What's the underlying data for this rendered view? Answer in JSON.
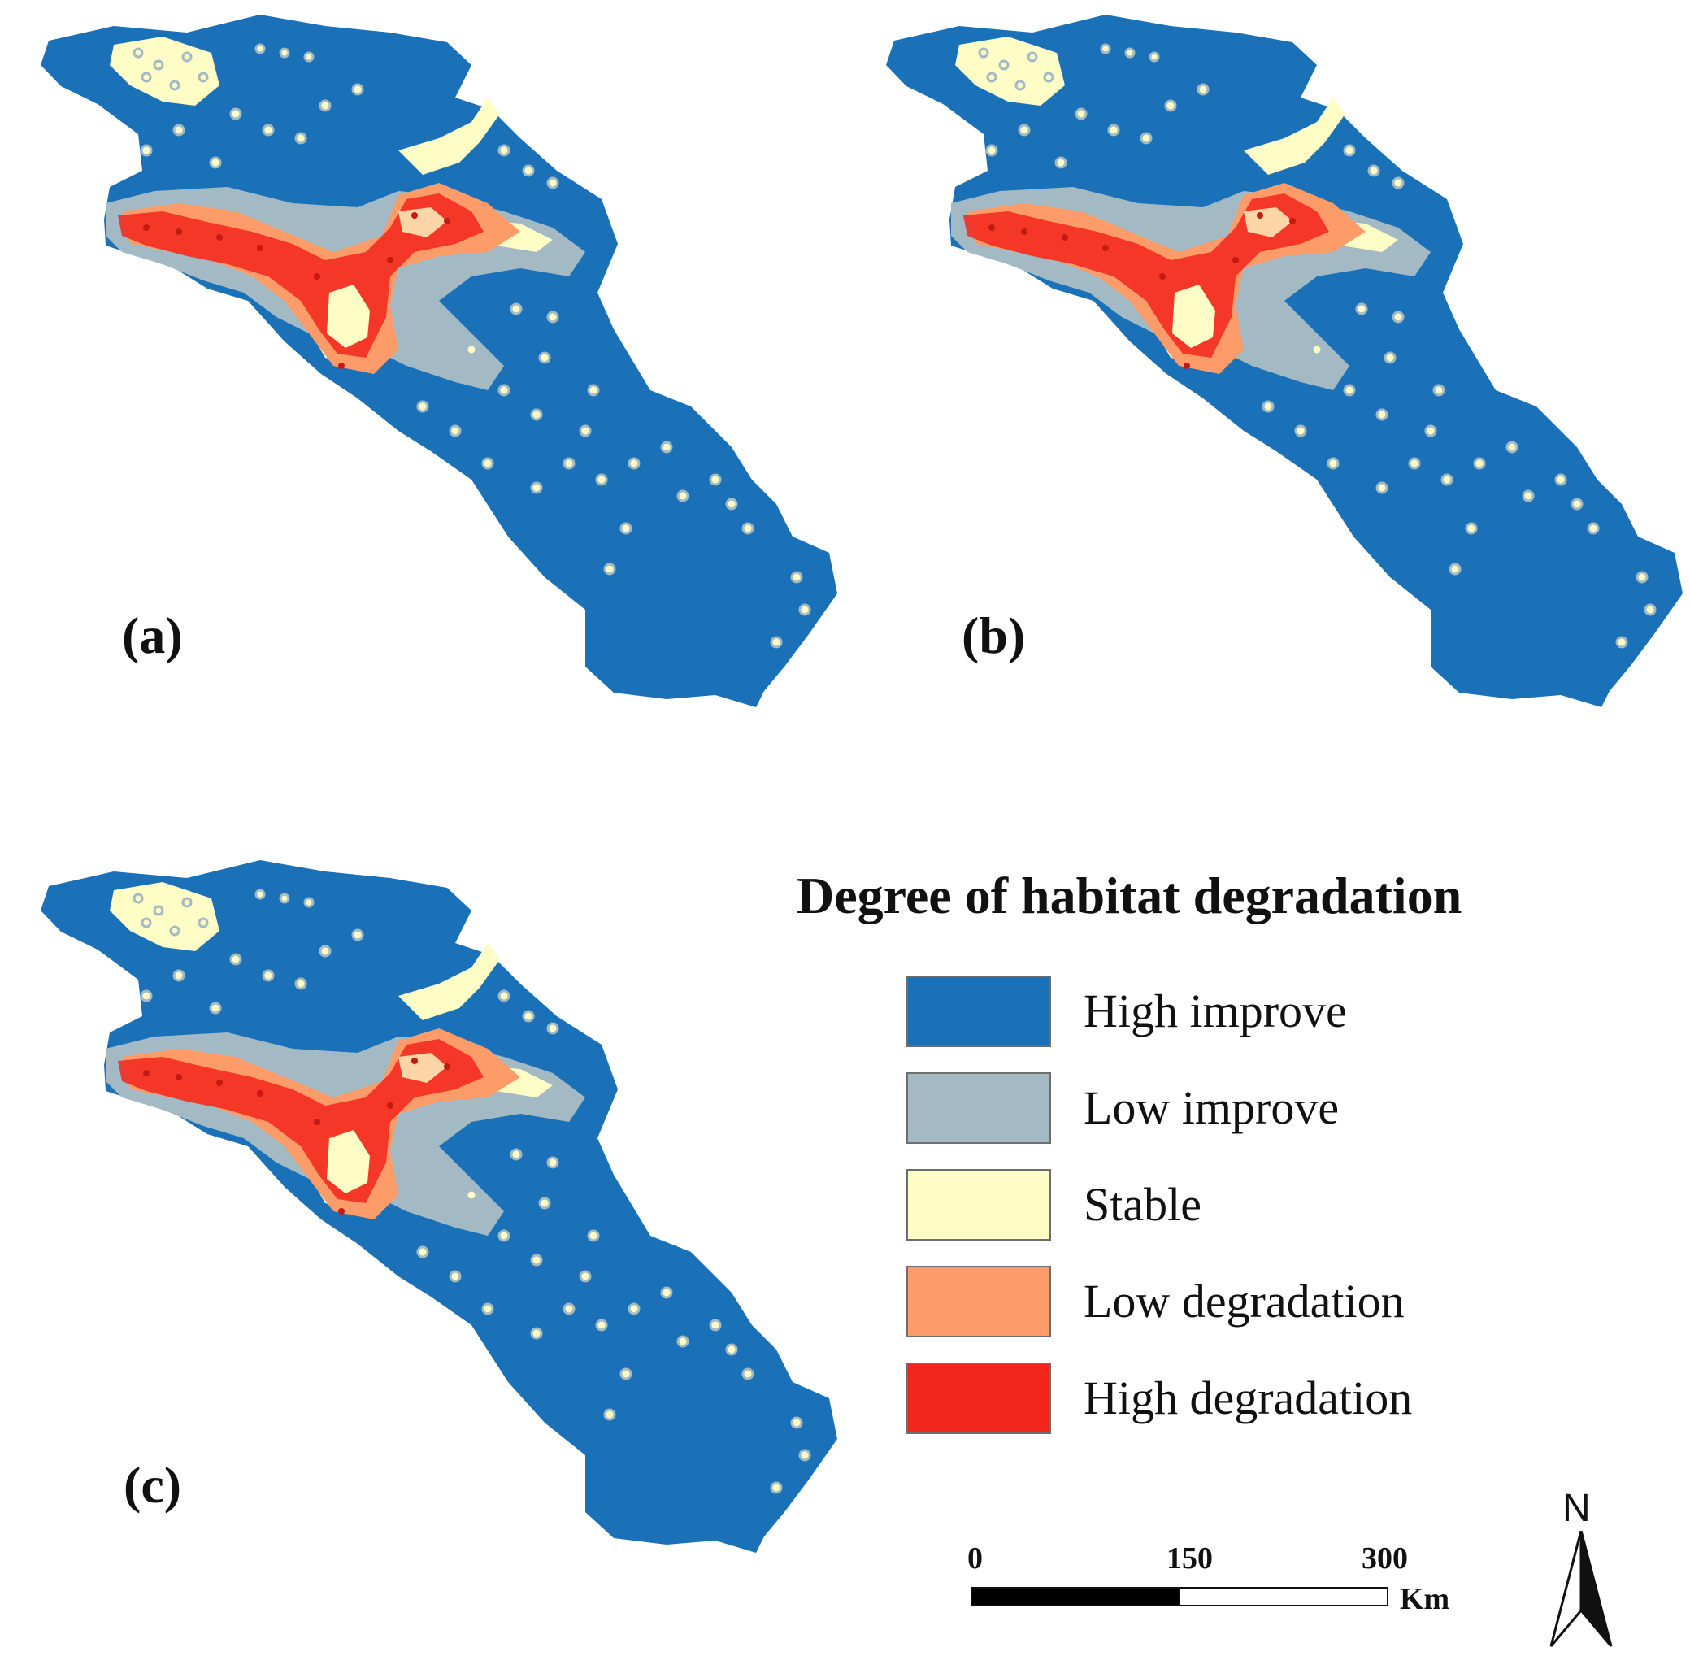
{
  "panels": [
    {
      "label": "(a)"
    },
    {
      "label": "(b)"
    },
    {
      "label": "(c)"
    }
  ],
  "legend": {
    "title": "Degree of habitat degradation",
    "items": [
      {
        "label": "High improve",
        "color": "#1a71b8"
      },
      {
        "label": "Low improve",
        "color": "#a3bac4"
      },
      {
        "label": "Stable",
        "color": "#fffdc6"
      },
      {
        "label": "Low degradation",
        "color": "#fd9c68"
      },
      {
        "label": "High degradation",
        "color": "#f3261d"
      }
    ]
  },
  "scale_bar": {
    "ticks": [
      "0",
      "150",
      "300"
    ],
    "unit": "Km"
  },
  "north_arrow": {
    "label": "N"
  }
}
